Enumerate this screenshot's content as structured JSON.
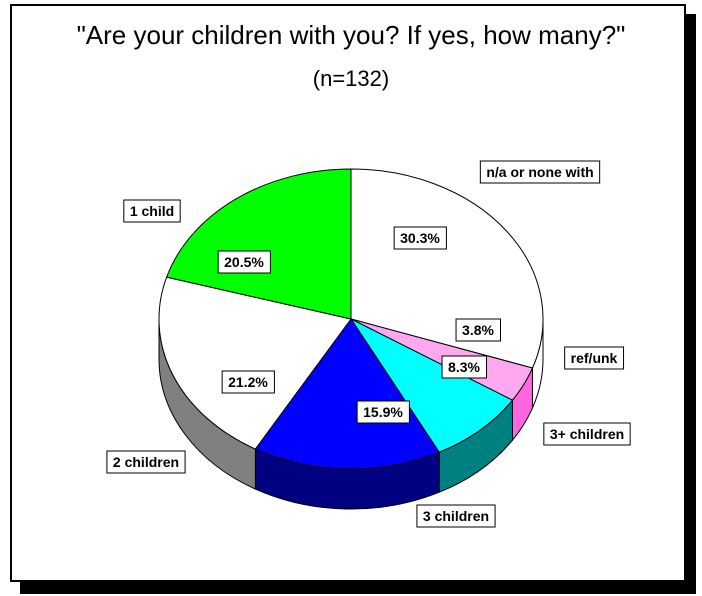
{
  "chart_data": {
    "type": "pie",
    "title": "\"Are your children with you? If yes, how many?\"",
    "subtitle": "(n=132)",
    "slices": [
      {
        "label": "n/a or none with",
        "value": 30.3,
        "value_label": "30.3%",
        "color": "#ffffff",
        "side_color": "#ffffff"
      },
      {
        "label": "ref/unk",
        "value": 3.8,
        "value_label": "3.8%",
        "color": "#ffa8f0",
        "side_color": "#ff66e0"
      },
      {
        "label": "3+ children",
        "value": 8.3,
        "value_label": "8.3%",
        "color": "#00ffff",
        "side_color": "#008080"
      },
      {
        "label": "3 children",
        "value": 15.9,
        "value_label": "15.9%",
        "color": "#0000ff",
        "side_color": "#000080"
      },
      {
        "label": "2 children",
        "value": 21.2,
        "value_label": "21.2%",
        "color": "#ffffff",
        "side_color": "#808080"
      },
      {
        "label": "1 child",
        "value": 20.5,
        "value_label": "20.5%",
        "color": "#00ff00",
        "side_color": "#008000"
      }
    ]
  }
}
